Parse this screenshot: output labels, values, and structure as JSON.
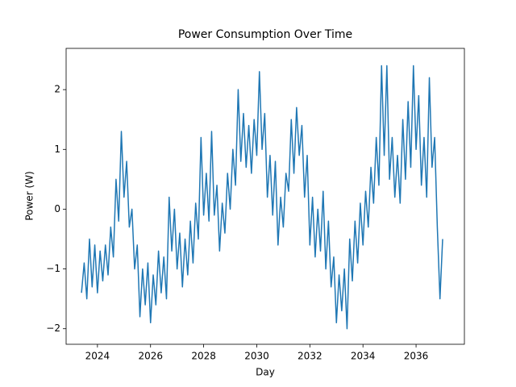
{
  "chart_data": {
    "type": "line",
    "title": "Power Consumption Over Time",
    "x_label": "Day",
    "y_label": "Power (W)",
    "x": [
      2023.4,
      2023.5,
      2023.6,
      2023.7,
      2023.8,
      2023.9,
      2024.0,
      2024.1,
      2024.2,
      2024.3,
      2024.4,
      2024.5,
      2024.6,
      2024.7,
      2024.8,
      2024.9,
      2025.0,
      2025.1,
      2025.2,
      2025.3,
      2025.4,
      2025.5,
      2025.6,
      2025.7,
      2025.8,
      2025.9,
      2026.0,
      2026.1,
      2026.2,
      2026.3,
      2026.4,
      2026.5,
      2026.6,
      2026.7,
      2026.8,
      2026.9,
      2027.0,
      2027.1,
      2027.2,
      2027.3,
      2027.4,
      2027.5,
      2027.6,
      2027.7,
      2027.8,
      2027.9,
      2028.0,
      2028.1,
      2028.2,
      2028.3,
      2028.4,
      2028.5,
      2028.6,
      2028.7,
      2028.8,
      2028.9,
      2029.0,
      2029.1,
      2029.2,
      2029.3,
      2029.4,
      2029.5,
      2029.6,
      2029.7,
      2029.8,
      2029.9,
      2030.0,
      2030.1,
      2030.2,
      2030.3,
      2030.4,
      2030.5,
      2030.6,
      2030.7,
      2030.8,
      2030.9,
      2031.0,
      2031.1,
      2031.2,
      2031.3,
      2031.4,
      2031.5,
      2031.6,
      2031.7,
      2031.8,
      2031.9,
      2032.0,
      2032.1,
      2032.2,
      2032.3,
      2032.4,
      2032.5,
      2032.6,
      2032.7,
      2032.8,
      2032.9,
      2033.0,
      2033.1,
      2033.2,
      2033.3,
      2033.4,
      2033.5,
      2033.6,
      2033.7,
      2033.8,
      2033.9,
      2034.0,
      2034.1,
      2034.2,
      2034.3,
      2034.4,
      2034.5,
      2034.6,
      2034.7,
      2034.8,
      2034.9,
      2035.0,
      2035.1,
      2035.2,
      2035.3,
      2035.4,
      2035.5,
      2035.6,
      2035.7,
      2035.8,
      2035.9,
      2036.0,
      2036.1,
      2036.2,
      2036.3,
      2036.4,
      2036.5,
      2036.6,
      2036.7,
      2036.8,
      2036.9,
      2037.0
    ],
    "series": [
      {
        "name": "Power",
        "color": "#1f77b4",
        "values": [
          -1.4,
          -0.9,
          -1.5,
          -0.5,
          -1.3,
          -0.6,
          -1.4,
          -0.7,
          -1.2,
          -0.6,
          -1.1,
          -0.3,
          -0.8,
          0.5,
          -0.2,
          1.3,
          0.2,
          0.8,
          -0.3,
          0.0,
          -1.0,
          -0.6,
          -1.8,
          -1.0,
          -1.6,
          -0.9,
          -1.9,
          -1.1,
          -1.6,
          -0.7,
          -1.4,
          -0.8,
          -1.5,
          0.2,
          -0.7,
          0.0,
          -1.0,
          -0.4,
          -1.3,
          -0.5,
          -1.1,
          -0.2,
          -0.9,
          0.1,
          -0.5,
          1.2,
          -0.1,
          0.6,
          -0.2,
          1.3,
          -0.1,
          0.4,
          -0.7,
          0.1,
          -0.4,
          0.6,
          0.0,
          1.0,
          0.4,
          2.0,
          0.8,
          1.6,
          0.7,
          1.4,
          0.6,
          1.5,
          0.9,
          2.3,
          1.0,
          1.6,
          0.2,
          0.9,
          -0.1,
          0.8,
          -0.6,
          0.2,
          -0.3,
          0.6,
          0.3,
          1.5,
          0.6,
          1.7,
          0.9,
          1.4,
          0.2,
          0.9,
          -0.6,
          0.2,
          -0.8,
          0.0,
          -0.7,
          0.3,
          -1.0,
          -0.2,
          -1.3,
          -0.8,
          -1.9,
          -1.1,
          -1.7,
          -1.0,
          -2.0,
          -0.5,
          -1.2,
          -0.2,
          -0.9,
          0.1,
          -0.6,
          0.3,
          -0.3,
          0.7,
          0.1,
          1.2,
          0.4,
          2.4,
          0.9,
          2.4,
          0.5,
          1.2,
          0.2,
          0.9,
          0.1,
          1.5,
          0.5,
          1.8,
          0.7,
          2.4,
          1.0,
          1.9,
          0.4,
          1.2,
          0.2,
          2.2,
          0.7,
          1.2,
          -0.3,
          -1.5,
          -0.5
        ]
      }
    ],
    "xlim": [
      2022.82,
      2037.82
    ],
    "xticks": [
      2024,
      2026,
      2028,
      2030,
      2032,
      2034,
      2036
    ],
    "ylim": [
      -2.26,
      2.69
    ],
    "yticks": [
      {
        "value": -2,
        "label": "−2"
      },
      {
        "value": -1,
        "label": "−1"
      },
      0,
      1,
      2
    ],
    "grid": false
  }
}
